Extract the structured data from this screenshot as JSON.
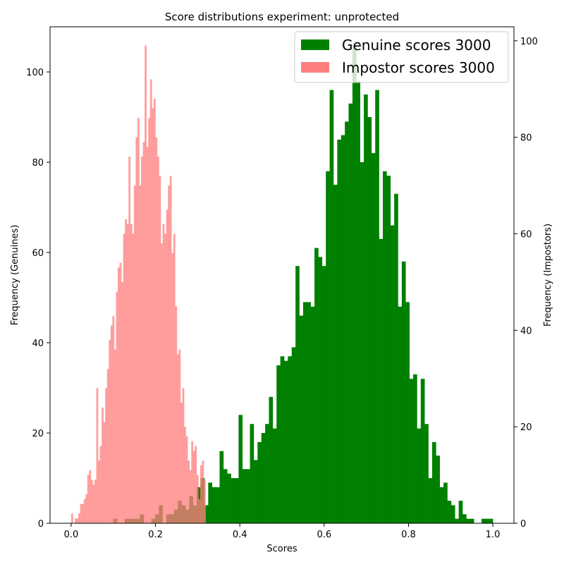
{
  "chart_data": {
    "type": "bar",
    "title": "Score distributions experiment: unprotected",
    "xlabel": "Scores",
    "ylabel_left": "Frequency (Genuines)",
    "ylabel_right": "Frequency (Impostors)",
    "xlim": [
      -0.05,
      1.05
    ],
    "ylim_left": [
      0,
      110
    ],
    "ylim_right": [
      0,
      102.9
    ],
    "x_ticks": [
      "0.0",
      "0.2",
      "0.4",
      "0.6",
      "0.8",
      "1.0"
    ],
    "y_left_ticks": [
      "0",
      "20",
      "40",
      "60",
      "80",
      "100"
    ],
    "y_right_ticks": [
      "0",
      "20",
      "40",
      "60",
      "80",
      "100"
    ],
    "legend_position": "top-right",
    "series": [
      {
        "name": "Genuine scores 3000",
        "color": "#008000",
        "axis": "left",
        "bin_start": 0.1,
        "bin_width": 0.009,
        "values": [
          1,
          0,
          0,
          1,
          1,
          1,
          1,
          2,
          0,
          0,
          1,
          2,
          4,
          0,
          2,
          2,
          3,
          5,
          4,
          3,
          6,
          4,
          8,
          10,
          4,
          9,
          8,
          8,
          16,
          12,
          11,
          10,
          10,
          24,
          12,
          12,
          22,
          14,
          18,
          20,
          22,
          28,
          21,
          35,
          37,
          36,
          37,
          39,
          57,
          46,
          49,
          49,
          48,
          61,
          59,
          57,
          78,
          96,
          75,
          85,
          86,
          89,
          93,
          106,
          98,
          80,
          95,
          90,
          82,
          96,
          63,
          78,
          77,
          66,
          73,
          48,
          58,
          49,
          32,
          33,
          21,
          32,
          22,
          10,
          18,
          15,
          8,
          9,
          5,
          4,
          1,
          5,
          2,
          1,
          1,
          0,
          0,
          1,
          1,
          1
        ]
      },
      {
        "name": "Impostor scores 3000",
        "color": "#ff7f7f",
        "axis": "right",
        "bin_start": 0.0,
        "bin_width": 0.00425,
        "values": [
          2,
          0,
          1,
          1,
          2,
          4,
          4,
          5,
          6,
          10,
          11,
          9,
          8,
          9,
          28,
          13,
          16,
          24,
          21,
          28,
          32,
          38,
          41,
          43,
          36,
          48,
          53,
          54,
          50,
          60,
          63,
          62,
          76,
          62,
          60,
          70,
          80,
          84,
          70,
          76,
          79,
          99,
          78,
          84,
          92,
          86,
          88,
          80,
          76,
          72,
          58,
          62,
          60,
          65,
          70,
          72,
          56,
          60,
          45,
          35,
          36,
          25,
          28,
          20,
          18,
          13,
          11,
          17,
          15,
          16,
          10,
          5,
          12,
          13,
          9
        ]
      }
    ]
  }
}
